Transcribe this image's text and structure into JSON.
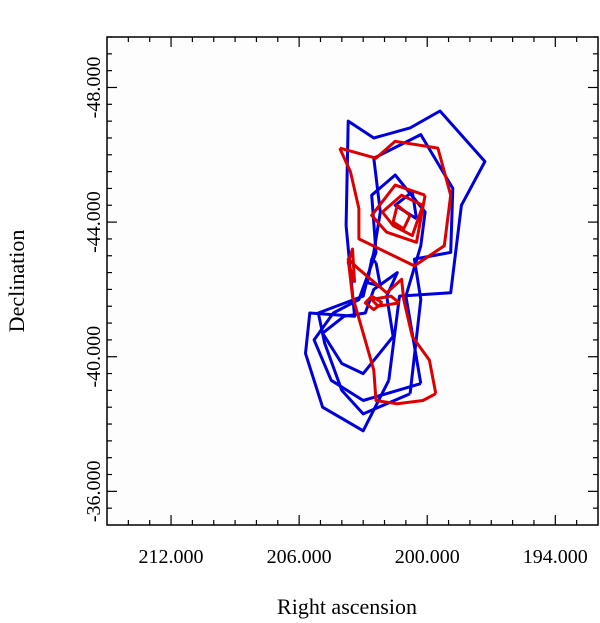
{
  "chart_data": {
    "type": "contour",
    "xlabel": "Right ascension",
    "ylabel": "Declination",
    "xlim": [
      215.0,
      192.0
    ],
    "ylim": [
      49.5,
      35.0
    ],
    "x_ticks": [
      212.0,
      206.0,
      200.0,
      194.0
    ],
    "x_tick_labels": [
      "212.000",
      "206.000",
      "200.000",
      "194.000"
    ],
    "y_ticks": [
      36.0,
      40.0,
      44.0,
      48.0
    ],
    "y_tick_labels": [
      "-36.000",
      "-40.000",
      "-44.000",
      "-48.000"
    ],
    "grid": false,
    "colors": {
      "blue": "#0000dd",
      "red": "#dd0000",
      "frame": "#000000"
    },
    "series": [
      {
        "color": "blue",
        "contours": [
          [
            [
              201.8,
              39.3
            ],
            [
              201.3,
              41.8
            ],
            [
              198.9,
              41.9
            ],
            [
              198.4,
              44.5
            ],
            [
              197.3,
              45.8
            ],
            [
              199.4,
              47.3
            ],
            [
              200.8,
              46.8
            ],
            [
              202.5,
              46.5
            ],
            [
              203.7,
              47.0
            ],
            [
              203.8,
              43.9
            ],
            [
              203.4,
              41.2
            ],
            [
              205.5,
              41.3
            ],
            [
              205.7,
              40.1
            ],
            [
              204.9,
              38.5
            ],
            [
              203.0,
              37.8
            ],
            [
              201.8,
              39.3
            ]
          ],
          [
            [
              200.8,
              38.9
            ],
            [
              200.3,
              41.7
            ],
            [
              200.6,
              42.9
            ],
            [
              198.9,
              43.1
            ],
            [
              198.8,
              45.0
            ],
            [
              200.3,
              46.6
            ],
            [
              202.5,
              45.9
            ],
            [
              202.2,
              44.3
            ],
            [
              202.5,
              43.1
            ],
            [
              203.0,
              41.8
            ],
            [
              205.1,
              41.3
            ],
            [
              204.8,
              40.4
            ],
            [
              204.0,
              39.0
            ],
            [
              203.0,
              38.3
            ],
            [
              200.8,
              38.9
            ]
          ],
          [
            [
              200.3,
              39.2
            ],
            [
              201.0,
              41.8
            ],
            [
              200.3,
              43.3
            ],
            [
              200.1,
              44.3
            ],
            [
              201.5,
              45.4
            ],
            [
              202.6,
              44.8
            ],
            [
              202.4,
              43.1
            ],
            [
              203.2,
              41.7
            ],
            [
              204.4,
              41.3
            ],
            [
              205.3,
              40.5
            ],
            [
              204.5,
              39.3
            ],
            [
              203.0,
              38.7
            ],
            [
              200.3,
              39.2
            ]
          ],
          [
            [
              201.6,
              40.6
            ],
            [
              201.9,
              41.8
            ],
            [
              201.4,
              42.5
            ],
            [
              202.5,
              42.0
            ],
            [
              202.9,
              41.3
            ],
            [
              203.9,
              41.2
            ],
            [
              204.9,
              40.7
            ],
            [
              204.0,
              39.8
            ],
            [
              203.0,
              39.5
            ],
            [
              201.6,
              40.6
            ]
          ],
          [
            [
              200.5,
              44.1
            ],
            [
              201.5,
              44.5
            ],
            [
              200.7,
              44.9
            ],
            [
              200.5,
              44.1
            ]
          ],
          [
            [
              202.4,
              42.8
            ],
            [
              202.6,
              42.9
            ],
            [
              202.8,
              42.2
            ],
            [
              202.2,
              42.1
            ],
            [
              202.4,
              42.8
            ]
          ]
        ]
      },
      {
        "color": "red",
        "contours": [
          [
            [
              204.1,
              46.2
            ],
            [
              202.4,
              45.9
            ],
            [
              201.5,
              46.4
            ],
            [
              199.5,
              46.2
            ],
            [
              198.9,
              44.8
            ],
            [
              199.2,
              43.3
            ],
            [
              200.6,
              42.7
            ],
            [
              203.2,
              43.5
            ],
            [
              203.2,
              44.4
            ],
            [
              203.6,
              45.5
            ],
            [
              204.1,
              46.2
            ]
          ],
          [
            [
              200.1,
              44.8
            ],
            [
              200.5,
              43.4
            ],
            [
              201.9,
              43.7
            ],
            [
              202.6,
              44.2
            ],
            [
              201.5,
              45.1
            ],
            [
              200.1,
              44.8
            ]
          ],
          [
            [
              200.2,
              44.5
            ],
            [
              200.7,
              43.6
            ],
            [
              201.6,
              43.9
            ],
            [
              202.1,
              44.3
            ],
            [
              201.2,
              44.8
            ],
            [
              200.2,
              44.5
            ]
          ],
          [
            [
              200.8,
              44.2
            ],
            [
              201.1,
              43.8
            ],
            [
              201.6,
              44.0
            ],
            [
              201.4,
              44.5
            ],
            [
              200.8,
              44.2
            ]
          ],
          [
            [
              199.6,
              38.9
            ],
            [
              199.9,
              39.9
            ],
            [
              200.7,
              40.6
            ],
            [
              201.1,
              41.7
            ],
            [
              201.2,
              42.3
            ],
            [
              201.9,
              41.9
            ],
            [
              203.2,
              42.6
            ],
            [
              203.7,
              42.9
            ],
            [
              203.5,
              41.8
            ],
            [
              202.5,
              39.6
            ],
            [
              202.4,
              38.7
            ],
            [
              201.4,
              38.6
            ],
            [
              200.2,
              38.7
            ],
            [
              199.6,
              38.9
            ]
          ],
          [
            [
              201.3,
              41.6
            ],
            [
              201.7,
              41.8
            ],
            [
              202.6,
              41.7
            ],
            [
              202.3,
              41.5
            ],
            [
              201.3,
              41.6
            ]
          ],
          [
            [
              202.1,
              41.6
            ],
            [
              202.6,
              41.8
            ],
            [
              202.9,
              41.6
            ],
            [
              202.5,
              41.4
            ],
            [
              202.1,
              41.6
            ]
          ],
          [
            [
              203.4,
              42.2
            ],
            [
              203.7,
              42.8
            ],
            [
              203.5,
              43.2
            ],
            [
              203.4,
              42.2
            ]
          ]
        ]
      }
    ]
  }
}
